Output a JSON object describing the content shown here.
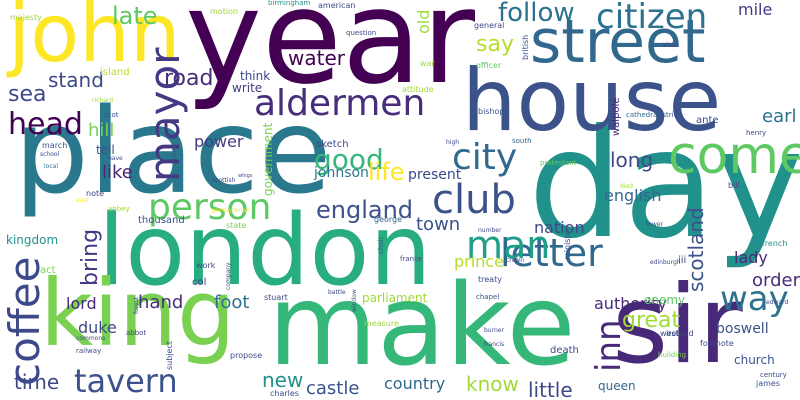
{
  "words": [
    {
      "text": "year",
      "color": "#440154"
    },
    {
      "text": "place",
      "color": "#2a788e"
    },
    {
      "text": "day",
      "color": "#21918c"
    },
    {
      "text": "house",
      "color": "#3b528b"
    },
    {
      "text": "london",
      "color": "#27ad81"
    },
    {
      "text": "make",
      "color": "#35b779"
    },
    {
      "text": "john",
      "color": "#fde725"
    },
    {
      "text": "king",
      "color": "#7ad151"
    },
    {
      "text": "street",
      "color": "#31688e"
    },
    {
      "text": "sir",
      "color": "#482878"
    },
    {
      "text": "come",
      "color": "#5ec962"
    },
    {
      "text": "aldermen",
      "color": "#472d7b"
    },
    {
      "text": "citizen",
      "color": "#2c728e"
    },
    {
      "text": "mayor",
      "color": "#443983"
    },
    {
      "text": "letter",
      "color": "#31688e"
    },
    {
      "text": "coffee",
      "color": "#3e4989"
    },
    {
      "text": "tavern",
      "color": "#3b528b"
    },
    {
      "text": "person",
      "color": "#5ec962"
    },
    {
      "text": "head",
      "color": "#440154"
    },
    {
      "text": "man",
      "color": "#1f9e89"
    },
    {
      "text": "club",
      "color": "#3b528b"
    },
    {
      "text": "city",
      "color": "#31688e"
    },
    {
      "text": "way",
      "color": "#2c728e"
    },
    {
      "text": "inn",
      "color": "#482878"
    },
    {
      "text": "good",
      "color": "#35b779"
    },
    {
      "text": "england",
      "color": "#3b528b"
    },
    {
      "text": "follow",
      "color": "#2c728e"
    },
    {
      "text": "late",
      "color": "#5ec962"
    },
    {
      "text": "sea",
      "color": "#3e4989"
    },
    {
      "text": "say",
      "color": "#b5de2b"
    },
    {
      "text": "water",
      "color": "#440154"
    },
    {
      "text": "road",
      "color": "#472d7b"
    },
    {
      "text": "stand",
      "color": "#3e4989"
    },
    {
      "text": "hill",
      "color": "#7ad151"
    },
    {
      "text": "tell",
      "color": "#3b528b"
    },
    {
      "text": "like",
      "color": "#482878"
    },
    {
      "text": "life",
      "color": "#fde725"
    },
    {
      "text": "long",
      "color": "#3e4989"
    },
    {
      "text": "great",
      "color": "#a0da39"
    },
    {
      "text": "english",
      "color": "#31688e"
    },
    {
      "text": "scotland",
      "color": "#3b528b"
    },
    {
      "text": "town",
      "color": "#3b528b"
    },
    {
      "text": "nation",
      "color": "#3e4989"
    },
    {
      "text": "bring",
      "color": "#443983"
    },
    {
      "text": "lord",
      "color": "#482878"
    },
    {
      "text": "hand",
      "color": "#472d7b"
    },
    {
      "text": "foot",
      "color": "#2c728e"
    },
    {
      "text": "time",
      "color": "#3e4989"
    },
    {
      "text": "new",
      "color": "#21918c"
    },
    {
      "text": "castle",
      "color": "#3b528b"
    },
    {
      "text": "country",
      "color": "#31688e"
    },
    {
      "text": "know",
      "color": "#a0da39"
    },
    {
      "text": "little",
      "color": "#3e4989"
    },
    {
      "text": "order",
      "color": "#472d7b"
    },
    {
      "text": "earl",
      "color": "#2c728e"
    },
    {
      "text": "mile",
      "color": "#443983"
    },
    {
      "text": "old",
      "color": "#a0da39"
    },
    {
      "text": "duke",
      "color": "#3e4989"
    },
    {
      "text": "boswell",
      "color": "#3b528b"
    },
    {
      "text": "authority",
      "color": "#482878"
    },
    {
      "text": "lady",
      "color": "#482878"
    },
    {
      "text": "church",
      "color": "#3b528b"
    },
    {
      "text": "prince",
      "color": "#b5de2b"
    },
    {
      "text": "johnson",
      "color": "#2a788e"
    },
    {
      "text": "present",
      "color": "#3e4989"
    },
    {
      "text": "power",
      "color": "#443983"
    },
    {
      "text": "kingdom",
      "color": "#21918c"
    },
    {
      "text": "parliament",
      "color": "#a0da39"
    },
    {
      "text": "enemy",
      "color": "#5ec962"
    },
    {
      "text": "queen",
      "color": "#31688e"
    },
    {
      "text": "death",
      "color": "#3e4989"
    },
    {
      "text": "government",
      "color": "#7ad151"
    },
    {
      "text": "sketch",
      "color": "#3e4989"
    },
    {
      "text": "write",
      "color": "#443983"
    },
    {
      "text": "think",
      "color": "#3e4989"
    },
    {
      "text": "island",
      "color": "#b5de2b"
    },
    {
      "text": "majesty",
      "color": "#a0da39"
    },
    {
      "text": "motion",
      "color": "#a0da39"
    },
    {
      "text": "birmingham",
      "color": "#21918c"
    },
    {
      "text": "american",
      "color": "#3e4989"
    },
    {
      "text": "general",
      "color": "#3e4989"
    },
    {
      "text": "officer",
      "color": "#5ec962"
    },
    {
      "text": "war",
      "color": "#a0da39"
    },
    {
      "text": "british",
      "color": "#3b528b"
    },
    {
      "text": "aisle",
      "color": "#3e4989"
    },
    {
      "text": "walpole",
      "color": "#482878"
    },
    {
      "text": "ante",
      "color": "#3e4989"
    },
    {
      "text": "district",
      "color": "#3b528b"
    },
    {
      "text": "cathedral",
      "color": "#31688e"
    },
    {
      "text": "henry",
      "color": "#3e4989"
    },
    {
      "text": "bishop",
      "color": "#3b528b"
    },
    {
      "text": "attitude",
      "color": "#a0da39"
    },
    {
      "text": "question",
      "color": "#3e4989"
    },
    {
      "text": "scot",
      "color": "#3b528b"
    },
    {
      "text": "richard",
      "color": "#a0da39"
    },
    {
      "text": "march",
      "color": "#3b528b"
    },
    {
      "text": "school",
      "color": "#3e4989"
    },
    {
      "text": "local",
      "color": "#2c728e"
    },
    {
      "text": "nave",
      "color": "#3e4989"
    },
    {
      "text": "note",
      "color": "#3e4989"
    },
    {
      "text": "east",
      "color": "#fde725"
    },
    {
      "text": "abbey",
      "color": "#a0da39"
    },
    {
      "text": "thousand",
      "color": "#3b528b"
    },
    {
      "text": "presbyterian",
      "color": "#fde725"
    },
    {
      "text": "state",
      "color": "#7ad151"
    },
    {
      "text": "work",
      "color": "#3e4989"
    },
    {
      "text": "col",
      "color": "#443983"
    },
    {
      "text": "stuart",
      "color": "#3e4989"
    },
    {
      "text": "treaty",
      "color": "#3e4989"
    },
    {
      "text": "crown",
      "color": "#3e4989"
    },
    {
      "text": "minister",
      "color": "#3b528b"
    },
    {
      "text": "edinburgh",
      "color": "#3e4989"
    },
    {
      "text": "french",
      "color": "#21918c"
    },
    {
      "text": "west",
      "color": "#3b528b"
    },
    {
      "text": "ireland",
      "color": "#3e4989"
    },
    {
      "text": "building",
      "color": "#7ad151"
    },
    {
      "text": "footnote",
      "color": "#3e4989"
    },
    {
      "text": "century",
      "color": "#3e4989"
    },
    {
      "text": "james",
      "color": "#3b528b"
    },
    {
      "text": "tower",
      "color": "#3e4989"
    },
    {
      "text": "bill",
      "color": "#3e4989"
    },
    {
      "text": "south",
      "color": "#31688e"
    },
    {
      "text": "high",
      "color": "#3e4989"
    },
    {
      "text": "protestant",
      "color": "#5ec962"
    },
    {
      "text": "north",
      "color": "#3b528b"
    },
    {
      "text": "whigs",
      "color": "#3e4989"
    },
    {
      "text": "scottish",
      "color": "#3e4989"
    },
    {
      "text": "george",
      "color": "#31688e"
    },
    {
      "text": "france",
      "color": "#3e4989"
    },
    {
      "text": "number",
      "color": "#3e4989"
    },
    {
      "text": "chapel",
      "color": "#3b528b"
    },
    {
      "text": "francis",
      "color": "#3e4989"
    },
    {
      "text": "burner",
      "color": "#3e4989"
    },
    {
      "text": "measure",
      "color": "#a0da39"
    },
    {
      "text": "propose",
      "color": "#3e4989"
    },
    {
      "text": "charles",
      "color": "#3e4989"
    },
    {
      "text": "subject",
      "color": "#3b528b"
    },
    {
      "text": "abbot",
      "color": "#3e4989"
    },
    {
      "text": "commons",
      "color": "#3e4989"
    },
    {
      "text": "railway",
      "color": "#3e4989"
    },
    {
      "text": "forest",
      "color": "#3e4989"
    },
    {
      "text": "battle",
      "color": "#3e4989"
    },
    {
      "text": "window",
      "color": "#3b528b"
    },
    {
      "text": "choir",
      "color": "#3b528b"
    },
    {
      "text": "company",
      "color": "#3e4989"
    },
    {
      "text": "act",
      "color": "#7ad151"
    },
    {
      "text": "iii",
      "color": "#3e4989"
    },
    {
      "text": "edward",
      "color": "#3e4989"
    },
    {
      "text": "died",
      "color": "#a0da39"
    }
  ]
}
